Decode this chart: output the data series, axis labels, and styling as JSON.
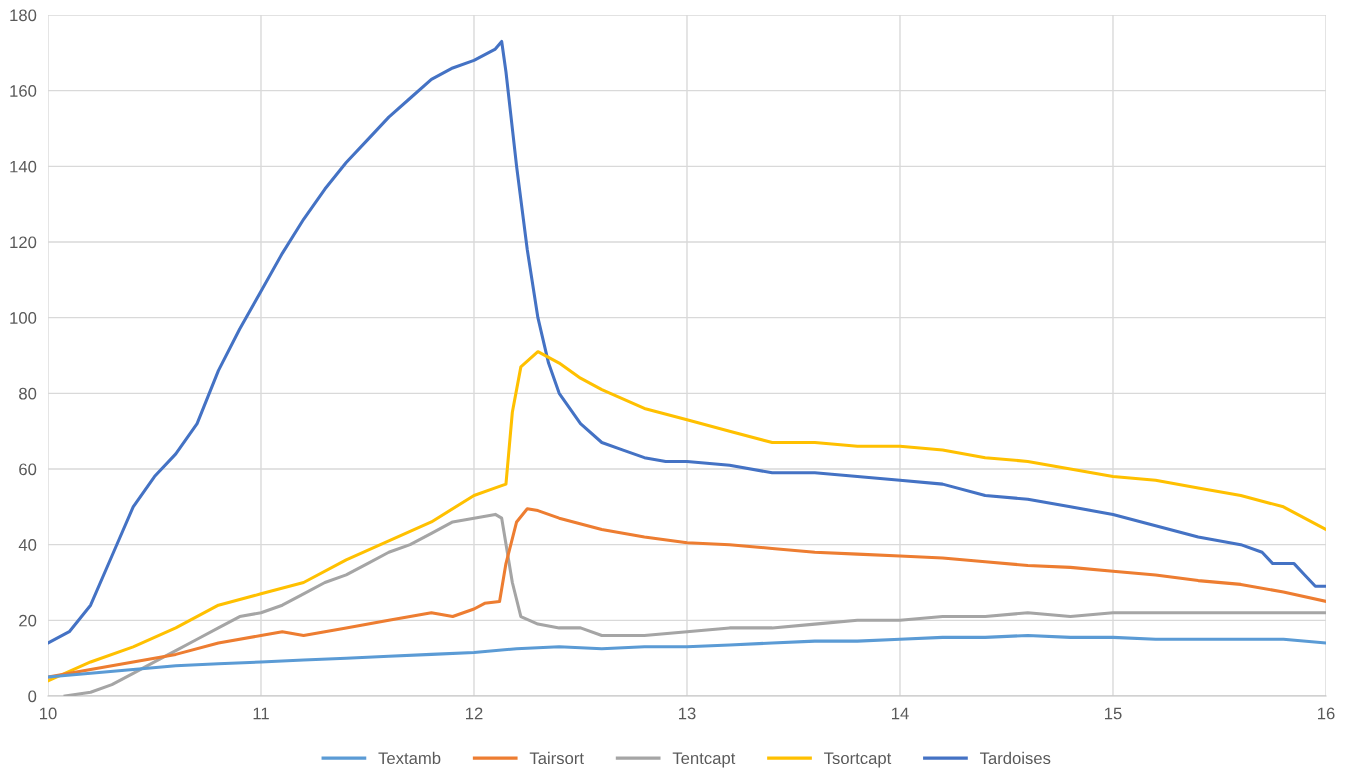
{
  "chart_data": {
    "type": "line",
    "xlim": [
      10,
      16
    ],
    "ylim": [
      0,
      180
    ],
    "xticks": [
      10,
      11,
      12,
      13,
      14,
      15,
      16
    ],
    "yticks": [
      0,
      20,
      40,
      60,
      80,
      100,
      120,
      140,
      160,
      180
    ],
    "grid": true,
    "legend": "bottom",
    "marker": "none",
    "line_style": "solid",
    "series": [
      {
        "name": "Textamb",
        "color": "#5b9bd5",
        "x": [
          10,
          10.2,
          10.4,
          10.6,
          10.8,
          11.0,
          11.2,
          11.4,
          11.6,
          11.8,
          12.0,
          12.2,
          12.4,
          12.6,
          12.8,
          13.0,
          13.2,
          13.4,
          13.6,
          13.8,
          14.0,
          14.2,
          14.4,
          14.6,
          14.8,
          15.0,
          15.2,
          15.4,
          15.6,
          15.8,
          16.0
        ],
        "values": [
          5,
          6,
          7,
          8,
          8.5,
          9,
          9.5,
          10,
          10.5,
          11,
          11.5,
          12.5,
          13,
          12.5,
          13,
          13,
          13.5,
          14,
          14.5,
          14.5,
          15,
          15.5,
          15.5,
          16,
          15.5,
          15.5,
          15,
          15,
          15,
          15,
          14
        ]
      },
      {
        "name": "Tairsort",
        "color": "#ed7d31",
        "x": [
          10,
          10.2,
          10.4,
          10.6,
          10.8,
          11.0,
          11.1,
          11.2,
          11.4,
          11.6,
          11.8,
          11.9,
          12.0,
          12.05,
          12.12,
          12.15,
          12.2,
          12.25,
          12.3,
          12.4,
          12.6,
          12.8,
          13.0,
          13.2,
          13.4,
          13.6,
          13.8,
          14.0,
          14.2,
          14.4,
          14.6,
          14.8,
          15.0,
          15.2,
          15.4,
          15.6,
          15.8,
          16.0
        ],
        "values": [
          5,
          7,
          9,
          11,
          14,
          16,
          17,
          16,
          18,
          20,
          22,
          21,
          23,
          24.5,
          25,
          35,
          46,
          49.5,
          49,
          47,
          44,
          42,
          40.5,
          40,
          39,
          38,
          37.5,
          37,
          36.5,
          35.5,
          34.5,
          34,
          33,
          32,
          30.5,
          29.5,
          27.5,
          25
        ]
      },
      {
        "name": "Tentcapt",
        "color": "#a5a5a5",
        "x": [
          10.08,
          10.2,
          10.3,
          10.4,
          10.5,
          10.6,
          10.7,
          10.8,
          10.9,
          11.0,
          11.1,
          11.2,
          11.3,
          11.4,
          11.5,
          11.6,
          11.7,
          11.8,
          11.9,
          12.0,
          12.1,
          12.13,
          12.18,
          12.22,
          12.3,
          12.4,
          12.5,
          12.6,
          12.8,
          13.0,
          13.2,
          13.4,
          13.6,
          13.8,
          14.0,
          14.2,
          14.4,
          14.6,
          14.8,
          15.0,
          15.2,
          15.4,
          15.6,
          15.8,
          16.0
        ],
        "values": [
          0,
          1,
          3,
          6,
          9,
          12,
          15,
          18,
          21,
          22,
          24,
          27,
          30,
          32,
          35,
          38,
          40,
          43,
          46,
          47,
          48,
          47,
          30,
          21,
          19,
          18,
          18,
          16,
          16,
          17,
          18,
          18,
          19,
          20,
          20,
          21,
          21,
          22,
          21,
          22,
          22,
          22,
          22,
          22,
          22
        ]
      },
      {
        "name": "Tsortcapt",
        "color": "#ffc000",
        "x": [
          10,
          10.2,
          10.4,
          10.6,
          10.8,
          11.0,
          11.2,
          11.4,
          11.6,
          11.8,
          12.0,
          12.1,
          12.15,
          12.18,
          12.22,
          12.3,
          12.4,
          12.5,
          12.6,
          12.8,
          13.0,
          13.2,
          13.4,
          13.6,
          13.8,
          14.0,
          14.2,
          14.4,
          14.6,
          14.8,
          15.0,
          15.2,
          15.4,
          15.6,
          15.8,
          16.0
        ],
        "values": [
          4,
          9,
          13,
          18,
          24,
          27,
          30,
          36,
          41,
          46,
          53,
          55,
          56,
          75,
          87,
          91,
          88,
          84,
          81,
          76,
          73,
          70,
          67,
          67,
          66,
          66,
          65,
          63,
          62,
          60,
          58,
          57,
          55,
          53,
          50,
          44
        ]
      },
      {
        "name": "Tardoises",
        "color": "#4472c4",
        "x": [
          10,
          10.1,
          10.2,
          10.3,
          10.4,
          10.5,
          10.6,
          10.7,
          10.8,
          10.9,
          11.0,
          11.1,
          11.2,
          11.3,
          11.4,
          11.5,
          11.6,
          11.7,
          11.8,
          11.9,
          12.0,
          12.1,
          12.13,
          12.15,
          12.2,
          12.25,
          12.3,
          12.35,
          12.4,
          12.5,
          12.6,
          12.7,
          12.8,
          12.9,
          13.0,
          13.2,
          13.4,
          13.6,
          13.8,
          14.0,
          14.2,
          14.4,
          14.6,
          14.8,
          15.0,
          15.2,
          15.4,
          15.6,
          15.7,
          15.75,
          15.85,
          15.9,
          15.95,
          16.0
        ],
        "values": [
          14,
          17,
          24,
          37,
          50,
          58,
          64,
          72,
          86,
          97,
          107,
          117,
          126,
          134,
          141,
          147,
          153,
          158,
          163,
          166,
          168,
          171,
          173,
          165,
          140,
          118,
          100,
          88,
          80,
          72,
          67,
          65,
          63,
          62,
          62,
          61,
          59,
          59,
          58,
          57,
          56,
          53,
          52,
          50,
          48,
          45,
          42,
          40,
          38,
          35,
          35,
          32,
          29,
          29
        ]
      }
    ]
  }
}
